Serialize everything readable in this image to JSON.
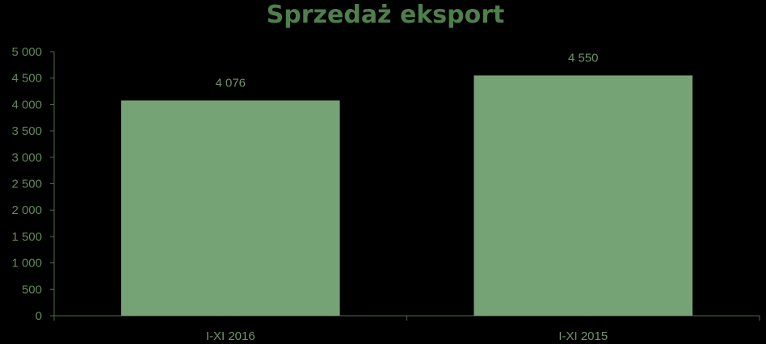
{
  "chart_data": {
    "type": "bar",
    "title": "Sprzedaż eksport",
    "categories": [
      "I-XI 2016",
      "I-XI 2015"
    ],
    "values": [
      4076,
      4550
    ],
    "value_labels": [
      "4 076",
      "4 550"
    ],
    "ylim": [
      0,
      5000
    ],
    "yticks": [
      0,
      500,
      1000,
      1500,
      2000,
      2500,
      3000,
      3500,
      4000,
      4500,
      5000
    ],
    "ytick_labels": [
      "0",
      "500",
      "1 000",
      "1 500",
      "2 000",
      "2 500",
      "3 000",
      "3 500",
      "4 000",
      "4 500",
      "5 000"
    ],
    "grid": false,
    "legend": "none",
    "colors": {
      "bar": "#76a376",
      "background": "#000000",
      "title": "#4f7f4b",
      "text": "#6d9468"
    }
  }
}
